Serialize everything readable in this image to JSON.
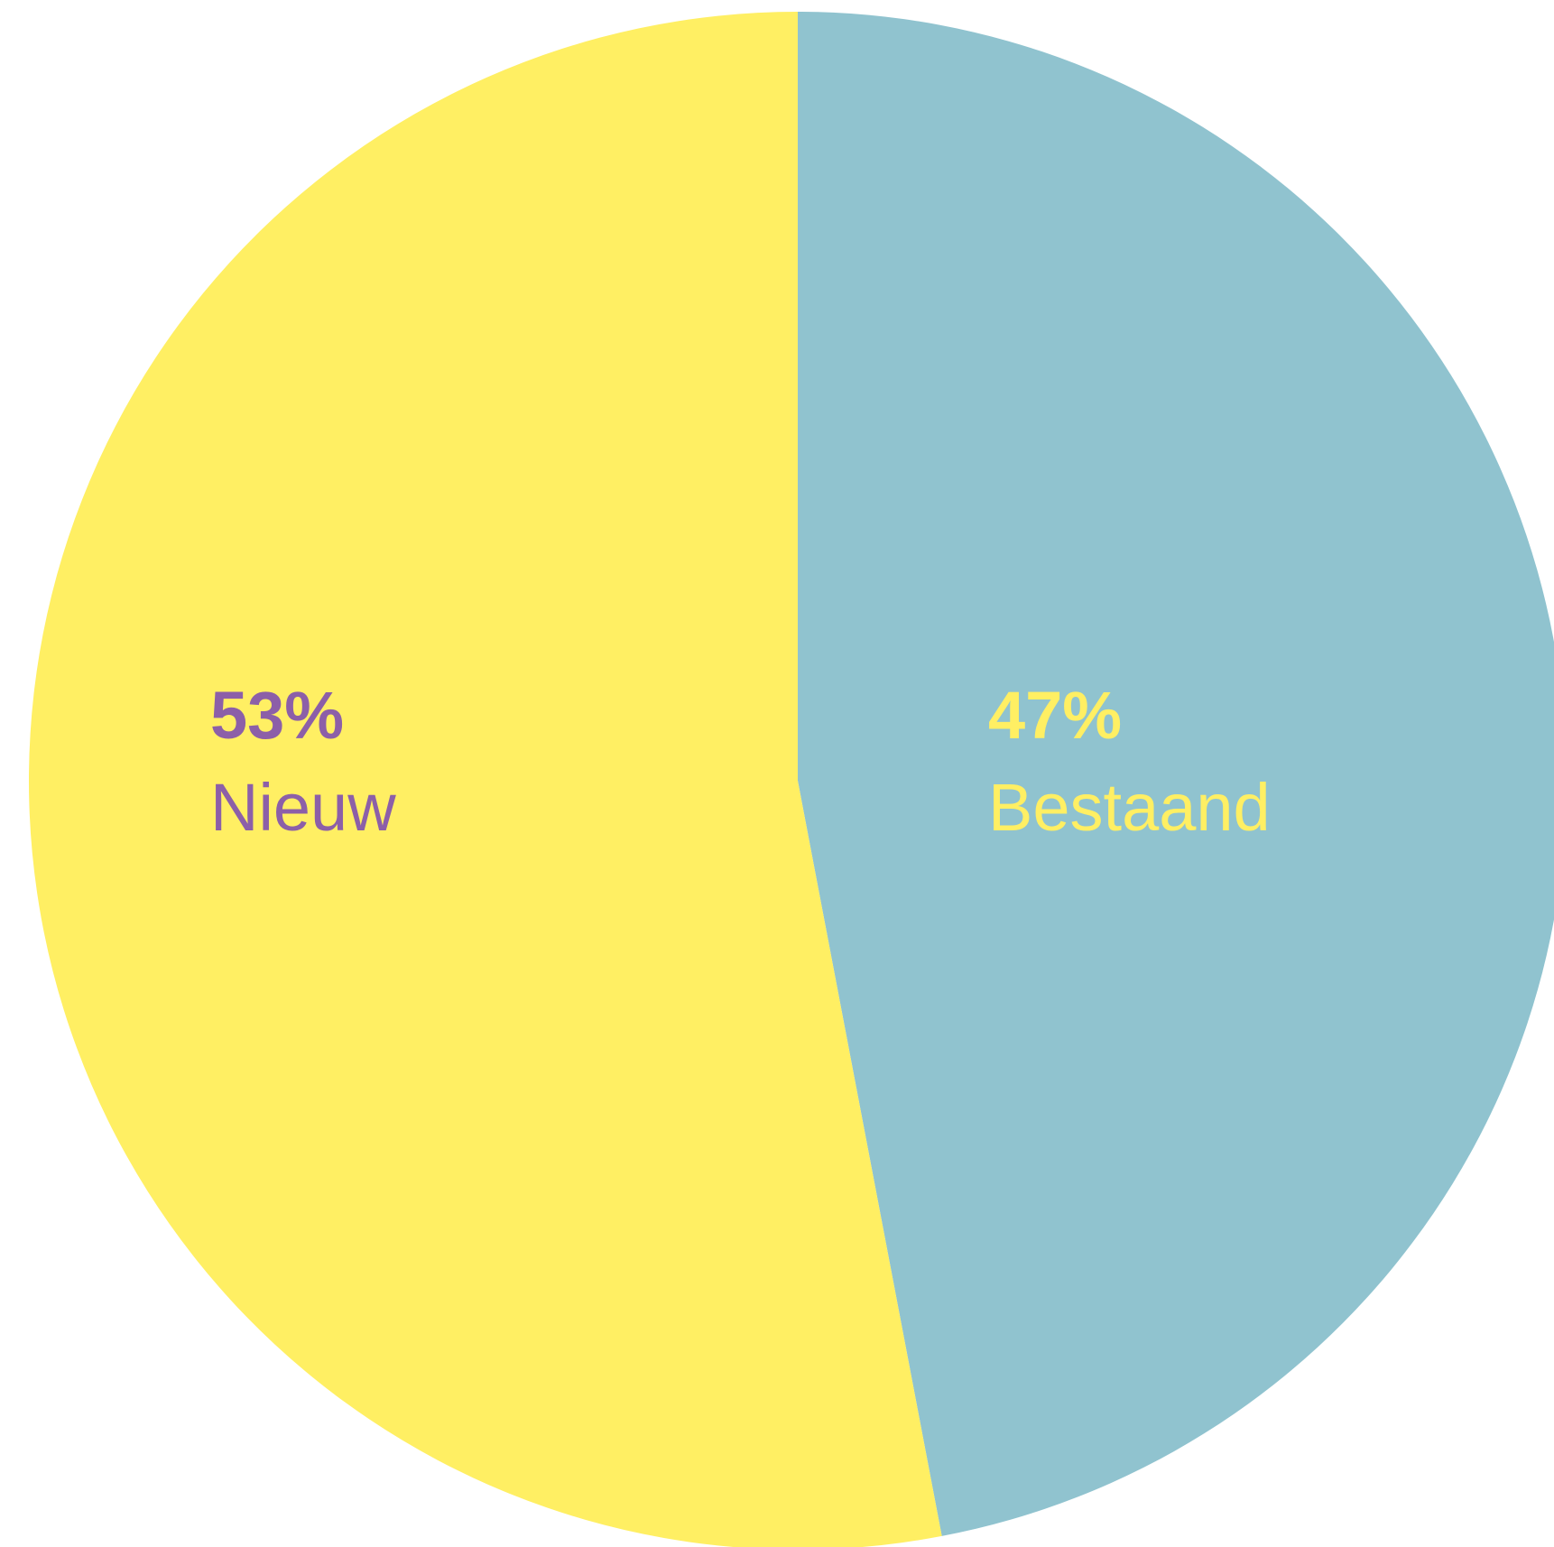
{
  "chart_data": {
    "type": "pie",
    "title": "",
    "slices": [
      {
        "label": "Bestaand",
        "value": 47,
        "value_label": "47%",
        "color": "#90c3cf",
        "label_color": "#ffef63"
      },
      {
        "label": "Nieuw",
        "value": 53,
        "value_label": "53%",
        "color": "#ffef63",
        "label_color": "#8c5fa8"
      }
    ],
    "start": "12 o'clock",
    "direction": "clockwise",
    "legend": "none"
  }
}
